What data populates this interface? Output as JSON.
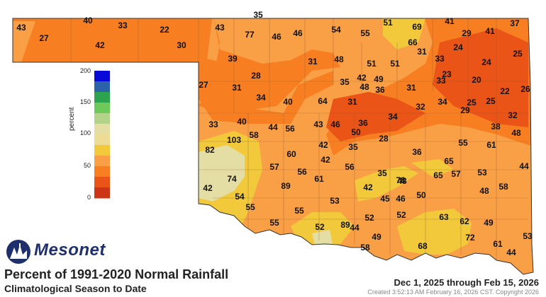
{
  "title": "Percent of 1991-2020 Normal Rainfall",
  "subtitle": "Climatological Season to Date",
  "date_range": "Dec 1, 2025 through Feb 15, 2026",
  "created": "Created 3:52:13 AM February 16, 2026 CST. Copyright 2026",
  "brand": "Mesonet",
  "legend": {
    "title": "percent",
    "ticks": [
      "200",
      "150",
      "100",
      "50",
      "0"
    ],
    "bins": [
      {
        "range": "175-200",
        "color": "#0a0ad8"
      },
      {
        "range": "150-175",
        "color": "#2a63a8"
      },
      {
        "range": "125-150",
        "color": "#2ea34f"
      },
      {
        "range": "110-125",
        "color": "#6cc95a"
      },
      {
        "range": "100-110",
        "color": "#b3d38a"
      },
      {
        "range": "90-100",
        "color": "#e4dea4"
      },
      {
        "range": "75-90",
        "color": "#eddc95"
      },
      {
        "range": "50-75",
        "color": "#f2c93b"
      },
      {
        "range": "40-50",
        "color": "#f9a046"
      },
      {
        "range": "25-40",
        "color": "#f77f22"
      },
      {
        "range": "10-25",
        "color": "#ea5416"
      },
      {
        "range": "0-10",
        "color": "#cc3616"
      }
    ]
  },
  "stations": [
    "35",
    "43",
    "27",
    "40",
    "33",
    "22",
    "42",
    "30",
    "43",
    "77",
    "46",
    "46",
    "54",
    "55",
    "51",
    "69",
    "41",
    "37",
    "29",
    "41",
    "66",
    "39",
    "31",
    "48",
    "51",
    "51",
    "31",
    "33",
    "24",
    "25",
    "24",
    "27",
    "31",
    "28",
    "35",
    "42",
    "49",
    "48",
    "36",
    "31",
    "33",
    "23",
    "20",
    "22",
    "26",
    "34",
    "40",
    "64",
    "31",
    "34",
    "32",
    "34",
    "25",
    "29",
    "25",
    "32",
    "33",
    "40",
    "44",
    "56",
    "43",
    "46",
    "36",
    "50",
    "28",
    "35",
    "42",
    "38",
    "48",
    "82",
    "103",
    "58",
    "60",
    "42",
    "36",
    "35",
    "55",
    "65",
    "61",
    "57",
    "56",
    "56",
    "48",
    "65",
    "57",
    "53",
    "44",
    "42",
    "74",
    "89",
    "61",
    "42",
    "78",
    "58",
    "48",
    "54",
    "55",
    "45",
    "46",
    "50",
    "53",
    "55",
    "55",
    "52",
    "89",
    "52",
    "44",
    "52",
    "63",
    "62",
    "49",
    "49",
    "68",
    "72",
    "53",
    "58",
    "61",
    "44",
    "54"
  ]
}
